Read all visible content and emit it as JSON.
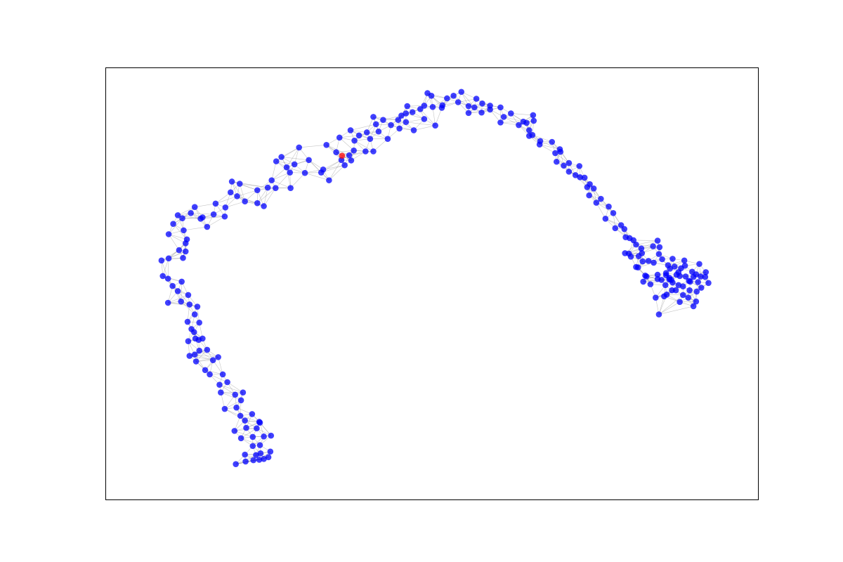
{
  "chart_data": {
    "type": "scatter",
    "title": "",
    "xlabel": "",
    "ylabel": "",
    "xlim": [
      0,
      1
    ],
    "ylim": [
      0,
      1
    ],
    "grid": false,
    "legend": "none",
    "ticks": "none",
    "edge_neighbors": 6,
    "colors": {
      "node": "#0000ff",
      "highlight": "#ff0000",
      "edge": "#808080",
      "frame": "#000000"
    },
    "series": [
      {
        "name": "",
        "color": "#0000ff",
        "points": [
          [
            0.199,
            0.082
          ],
          [
            0.214,
            0.088
          ],
          [
            0.226,
            0.091
          ],
          [
            0.235,
            0.092
          ],
          [
            0.242,
            0.094
          ],
          [
            0.249,
            0.098
          ],
          [
            0.213,
            0.104
          ],
          [
            0.23,
            0.103
          ],
          [
            0.237,
            0.107
          ],
          [
            0.252,
            0.111
          ],
          [
            0.225,
            0.124
          ],
          [
            0.236,
            0.126
          ],
          [
            0.207,
            0.142
          ],
          [
            0.225,
            0.145
          ],
          [
            0.242,
            0.146
          ],
          [
            0.253,
            0.148
          ],
          [
            0.197,
            0.159
          ],
          [
            0.215,
            0.166
          ],
          [
            0.231,
            0.165
          ],
          [
            0.235,
            0.18
          ],
          [
            0.213,
            0.183
          ],
          [
            0.236,
            0.178
          ],
          [
            0.206,
            0.194
          ],
          [
            0.224,
            0.198
          ],
          [
            0.2,
            0.213
          ],
          [
            0.182,
            0.21
          ],
          [
            0.207,
            0.23
          ],
          [
            0.21,
            0.248
          ],
          [
            0.198,
            0.243
          ],
          [
            0.176,
            0.248
          ],
          [
            0.174,
            0.266
          ],
          [
            0.186,
            0.272
          ],
          [
            0.179,
            0.29
          ],
          [
            0.159,
            0.29
          ],
          [
            0.152,
            0.3
          ],
          [
            0.164,
            0.323
          ],
          [
            0.172,
            0.33
          ],
          [
            0.138,
            0.32
          ],
          [
            0.136,
            0.336
          ],
          [
            0.128,
            0.333
          ],
          [
            0.143,
            0.345
          ],
          [
            0.155,
            0.347
          ],
          [
            0.142,
            0.37
          ],
          [
            0.137,
            0.373
          ],
          [
            0.148,
            0.373
          ],
          [
            0.126,
            0.367
          ],
          [
            0.131,
            0.395
          ],
          [
            0.135,
            0.388
          ],
          [
            0.125,
            0.412
          ],
          [
            0.143,
            0.41
          ],
          [
            0.136,
            0.429
          ],
          [
            0.14,
            0.447
          ],
          [
            0.128,
            0.452
          ],
          [
            0.095,
            0.456
          ],
          [
            0.115,
            0.459
          ],
          [
            0.126,
            0.474
          ],
          [
            0.11,
            0.483
          ],
          [
            0.102,
            0.495
          ],
          [
            0.087,
            0.518
          ],
          [
            0.095,
            0.512
          ],
          [
            0.116,
            0.505
          ],
          [
            0.085,
            0.554
          ],
          [
            0.096,
            0.559
          ],
          [
            0.118,
            0.56
          ],
          [
            0.122,
            0.575
          ],
          [
            0.112,
            0.578
          ],
          [
            0.122,
            0.594
          ],
          [
            0.124,
            0.603
          ],
          [
            0.096,
            0.615
          ],
          [
            0.119,
            0.624
          ],
          [
            0.103,
            0.639
          ],
          [
            0.11,
            0.659
          ],
          [
            0.117,
            0.652
          ],
          [
            0.136,
            0.678
          ],
          [
            0.148,
            0.654
          ],
          [
            0.155,
            0.632
          ],
          [
            0.168,
            0.686
          ],
          [
            0.165,
            0.661
          ],
          [
            0.182,
            0.656
          ],
          [
            0.145,
            0.651
          ],
          [
            0.13,
            0.664
          ],
          [
            0.183,
            0.677
          ],
          [
            0.201,
            0.703
          ],
          [
            0.191,
            0.712
          ],
          [
            0.213,
            0.691
          ],
          [
            0.232,
            0.687
          ],
          [
            0.242,
            0.68
          ],
          [
            0.232,
            0.717
          ],
          [
            0.205,
            0.732
          ],
          [
            0.193,
            0.737
          ],
          [
            0.248,
            0.723
          ],
          [
            0.26,
            0.722
          ],
          [
            0.254,
            0.74
          ],
          [
            0.283,
            0.722
          ],
          [
            0.282,
            0.758
          ],
          [
            0.277,
            0.77
          ],
          [
            0.289,
            0.777
          ],
          [
            0.261,
            0.784
          ],
          [
            0.269,
            0.794
          ],
          [
            0.305,
            0.757
          ],
          [
            0.311,
            0.787
          ],
          [
            0.333,
            0.765
          ],
          [
            0.342,
            0.74
          ],
          [
            0.33,
            0.758
          ],
          [
            0.296,
            0.816
          ],
          [
            0.338,
            0.822
          ],
          [
            0.353,
            0.805
          ],
          [
            0.361,
            0.787
          ],
          [
            0.373,
            0.798
          ],
          [
            0.376,
            0.786
          ],
          [
            0.366,
            0.775
          ],
          [
            0.38,
            0.809
          ],
          [
            0.398,
            0.807
          ],
          [
            0.381,
            0.832
          ],
          [
            0.388,
            0.844
          ],
          [
            0.4,
            0.851
          ],
          [
            0.375,
            0.856
          ],
          [
            0.358,
            0.839
          ],
          [
            0.405,
            0.836
          ],
          [
            0.418,
            0.853
          ],
          [
            0.414,
            0.87
          ],
          [
            0.425,
            0.88
          ],
          [
            0.437,
            0.868
          ],
          [
            0.432,
            0.836
          ],
          [
            0.41,
            0.887
          ],
          [
            0.41,
            0.807
          ],
          [
            0.448,
            0.88
          ],
          [
            0.453,
            0.89
          ],
          [
            0.46,
            0.875
          ],
          [
            0.45,
            0.86
          ],
          [
            0.472,
            0.856
          ],
          [
            0.482,
            0.905
          ],
          [
            0.488,
            0.882
          ],
          [
            0.501,
            0.91
          ],
          [
            0.516,
            0.914
          ],
          [
            0.505,
            0.867
          ],
          [
            0.47,
            0.898
          ],
          [
            0.46,
            0.895
          ],
          [
            0.462,
            0.912
          ],
          [
            0.493,
            0.942
          ],
          [
            0.488,
            0.913
          ],
          [
            0.499,
            0.936
          ],
          [
            0.515,
            0.908
          ],
          [
            0.523,
            0.93
          ],
          [
            0.54,
            0.921
          ],
          [
            0.545,
            0.945
          ],
          [
            0.533,
            0.936
          ],
          [
            0.568,
            0.929
          ],
          [
            0.556,
            0.896
          ],
          [
            0.556,
            0.912
          ],
          [
            0.565,
            0.909
          ],
          [
            0.577,
            0.918
          ],
          [
            0.589,
            0.913
          ],
          [
            0.576,
            0.897
          ],
          [
            0.589,
            0.904
          ],
          [
            0.605,
            0.909
          ],
          [
            0.61,
            0.887
          ],
          [
            0.605,
            0.874
          ],
          [
            0.621,
            0.895
          ],
          [
            0.64,
            0.876
          ],
          [
            0.645,
            0.873
          ],
          [
            0.633,
            0.868
          ],
          [
            0.655,
            0.891
          ],
          [
            0.656,
            0.878
          ],
          [
            0.649,
            0.856
          ],
          [
            0.649,
            0.843
          ],
          [
            0.654,
            0.845
          ],
          [
            0.666,
            0.831
          ],
          [
            0.665,
            0.823
          ],
          [
            0.684,
            0.829
          ],
          [
            0.689,
            0.803
          ],
          [
            0.696,
            0.812
          ],
          [
            0.697,
            0.806
          ],
          [
            0.691,
            0.783
          ],
          [
            0.702,
            0.774
          ],
          [
            0.71,
            0.78
          ],
          [
            0.71,
            0.76
          ],
          [
            0.726,
            0.773
          ],
          [
            0.727,
            0.747
          ],
          [
            0.734,
            0.746
          ],
          [
            0.72,
            0.752
          ],
          [
            0.738,
            0.724
          ],
          [
            0.742,
            0.731
          ],
          [
            0.741,
            0.705
          ],
          [
            0.748,
            0.721
          ],
          [
            0.752,
            0.688
          ],
          [
            0.759,
            0.697
          ],
          [
            0.771,
            0.679
          ],
          [
            0.766,
            0.651
          ],
          [
            0.778,
            0.664
          ],
          [
            0.781,
            0.629
          ],
          [
            0.79,
            0.636
          ],
          [
            0.795,
            0.627
          ],
          [
            0.803,
            0.606
          ],
          [
            0.797,
            0.608
          ],
          [
            0.802,
            0.57
          ],
          [
            0.796,
            0.571
          ],
          [
            0.809,
            0.601
          ],
          [
            0.813,
            0.539
          ],
          [
            0.817,
            0.564
          ],
          [
            0.823,
            0.552
          ],
          [
            0.827,
            0.519
          ],
          [
            0.805,
            0.563
          ],
          [
            0.846,
            0.6
          ],
          [
            0.849,
            0.585
          ],
          [
            0.846,
            0.511
          ],
          [
            0.829,
            0.517
          ],
          [
            0.84,
            0.549
          ],
          [
            0.852,
            0.509
          ],
          [
            0.858,
            0.497
          ],
          [
            0.864,
            0.514
          ],
          [
            0.859,
            0.52
          ],
          [
            0.859,
            0.525
          ],
          [
            0.846,
            0.521
          ],
          [
            0.835,
            0.499
          ],
          [
            0.856,
            0.471
          ],
          [
            0.878,
            0.497
          ],
          [
            0.875,
            0.521
          ],
          [
            0.887,
            0.554
          ],
          [
            0.889,
            0.517
          ],
          [
            0.894,
            0.507
          ],
          [
            0.895,
            0.485
          ],
          [
            0.906,
            0.482
          ],
          [
            0.913,
            0.491
          ],
          [
            0.919,
            0.516
          ],
          [
            0.92,
            0.527
          ],
          [
            0.91,
            0.546
          ],
          [
            0.843,
            0.468
          ],
          [
            0.848,
            0.429
          ],
          [
            0.824,
            0.505
          ],
          [
            0.821,
            0.582
          ],
          [
            0.839,
            0.587
          ],
          [
            0.848,
            0.569
          ],
          [
            0.853,
            0.557
          ],
          [
            0.862,
            0.543
          ],
          [
            0.869,
            0.558
          ],
          [
            0.882,
            0.536
          ],
          [
            0.874,
            0.485
          ],
          [
            0.885,
            0.474
          ],
          [
            0.893,
            0.468
          ],
          [
            0.88,
            0.458
          ],
          [
            0.901,
            0.448
          ],
          [
            0.905,
            0.459
          ],
          [
            0.868,
            0.485
          ],
          [
            0.86,
            0.475
          ],
          [
            0.885,
            0.494
          ],
          [
            0.867,
            0.509
          ],
          [
            0.869,
            0.503
          ],
          [
            0.88,
            0.518
          ],
          [
            0.899,
            0.528
          ],
          [
            0.908,
            0.504
          ],
          [
            0.924,
            0.502
          ],
          [
            0.878,
            0.527
          ],
          [
            0.872,
            0.54
          ],
          [
            0.865,
            0.535
          ],
          [
            0.864,
            0.51
          ],
          [
            0.832,
            0.553
          ],
          [
            0.813,
            0.591
          ],
          [
            0.822,
            0.571
          ],
          [
            0.816,
            0.538
          ],
          [
            0.905,
            0.522
          ],
          [
            0.912,
            0.517
          ],
          [
            0.888,
            0.542
          ],
          [
            0.896,
            0.505
          ],
          [
            0.901,
            0.516
          ]
        ]
      },
      {
        "name": "",
        "color": "#ff0000",
        "points": [
          [
            0.362,
            0.797
          ]
        ]
      }
    ]
  }
}
